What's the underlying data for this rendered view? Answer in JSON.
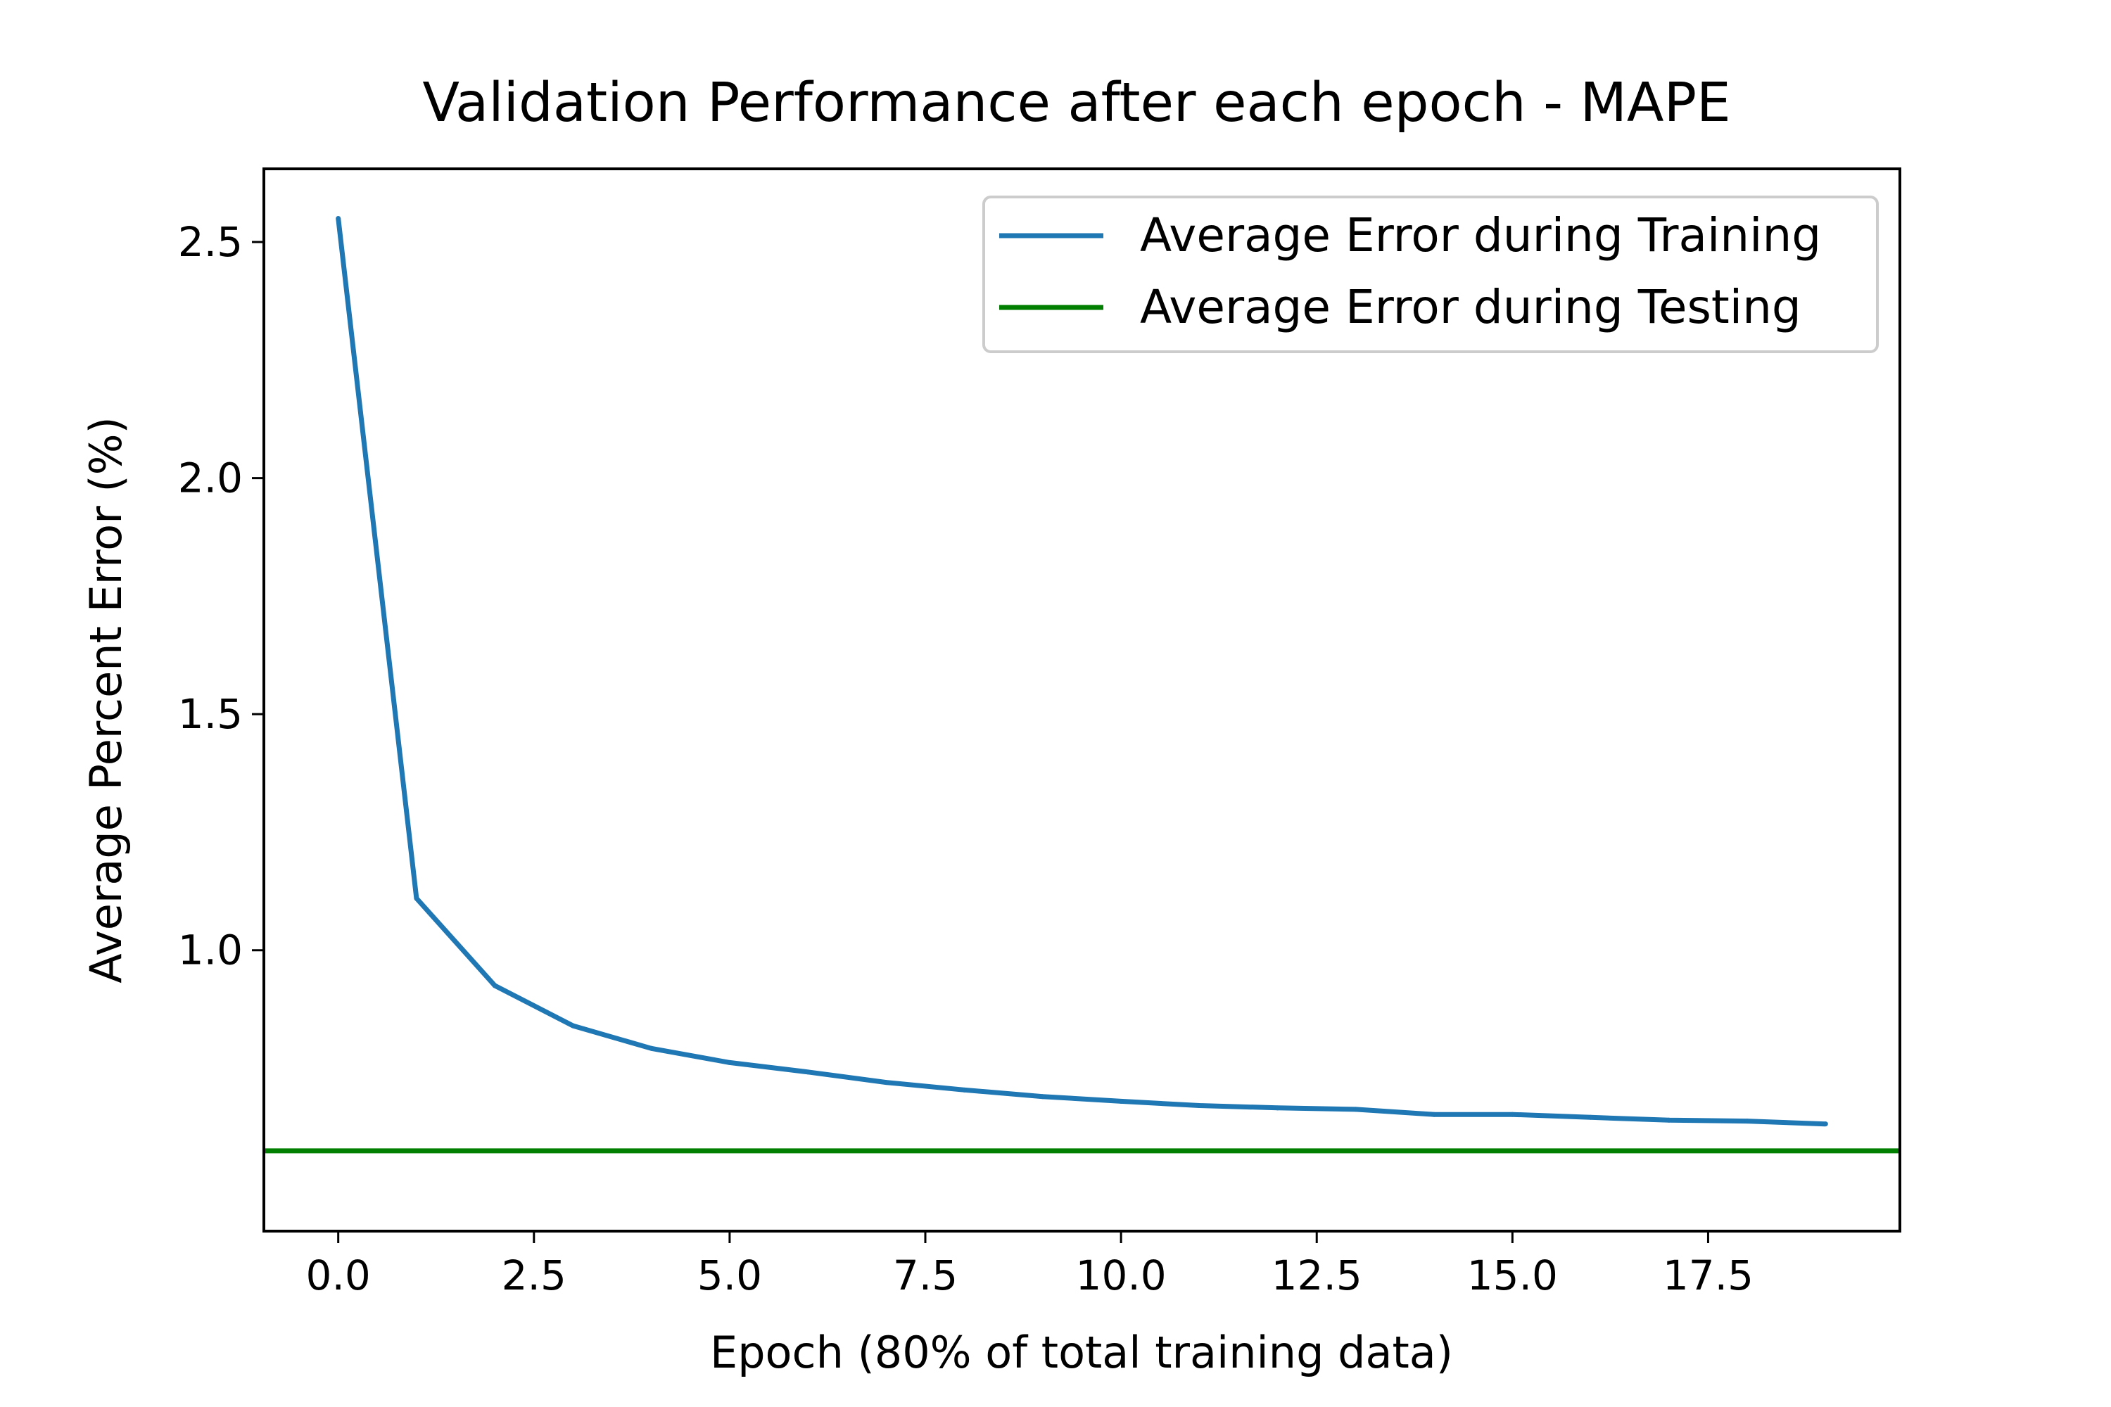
{
  "chart_data": {
    "type": "line",
    "title": "Validation Performance after each epoch - MAPE",
    "xlabel": "Epoch (80% of total training data)",
    "ylabel": "Average Percent Error (%)",
    "xlim": [
      -0.95,
      19.95
    ],
    "ylim": [
      0.405,
      2.655
    ],
    "xticks": [
      0.0,
      2.5,
      5.0,
      7.5,
      10.0,
      12.5,
      15.0,
      17.5
    ],
    "xtick_labels": [
      "0.0",
      "2.5",
      "5.0",
      "7.5",
      "10.0",
      "12.5",
      "15.0",
      "17.5"
    ],
    "yticks": [
      1.0,
      1.5,
      2.0,
      2.5
    ],
    "ytick_labels": [
      "1.0",
      "1.5",
      "2.0",
      "2.5"
    ],
    "grid": false,
    "legend_position": "top-right",
    "series": [
      {
        "name": "Average Error during Training",
        "color": "#1f77b4",
        "kind": "line",
        "x": [
          0,
          1,
          2,
          3,
          4,
          5,
          6,
          7,
          8,
          9,
          10,
          11,
          12,
          13,
          14,
          15,
          16,
          17,
          18,
          19
        ],
        "values": [
          2.55,
          1.11,
          0.925,
          0.84,
          0.792,
          0.762,
          0.742,
          0.72,
          0.704,
          0.69,
          0.68,
          0.671,
          0.666,
          0.663,
          0.652,
          0.652,
          0.646,
          0.64,
          0.638,
          0.632
        ]
      },
      {
        "name": "Average Error during Testing",
        "color": "#007f00",
        "kind": "hline",
        "value": 0.575
      }
    ]
  }
}
